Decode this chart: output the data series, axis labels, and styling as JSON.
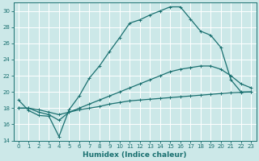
{
  "xlabel": "Humidex (Indice chaleur)",
  "bg_color": "#cce8e8",
  "line_color": "#1a7070",
  "grid_color": "#ffffff",
  "xlim": [
    -0.5,
    23.5
  ],
  "ylim": [
    14,
    31
  ],
  "xticks": [
    0,
    1,
    2,
    3,
    4,
    5,
    6,
    7,
    8,
    9,
    10,
    11,
    12,
    13,
    14,
    15,
    16,
    17,
    18,
    19,
    20,
    21,
    22,
    23
  ],
  "yticks": [
    14,
    16,
    18,
    20,
    22,
    24,
    26,
    28,
    30
  ],
  "line1_x": [
    0,
    1,
    2,
    3,
    4,
    5,
    6,
    7,
    8,
    9,
    10,
    11,
    12,
    13,
    14,
    15,
    16,
    17,
    18,
    19,
    20,
    21,
    22,
    23
  ],
  "line1_y": [
    19.0,
    17.7,
    17.1,
    17.0,
    14.5,
    17.8,
    19.5,
    21.7,
    23.2,
    25.0,
    26.7,
    28.5,
    28.9,
    29.5,
    30.0,
    30.5,
    30.5,
    29.0,
    27.5,
    27.0,
    25.5,
    21.5,
    20.0,
    20.0
  ],
  "line2_x": [
    0,
    1,
    2,
    3,
    4,
    5,
    6,
    7,
    8,
    9,
    10,
    11,
    12,
    13,
    14,
    15,
    16,
    17,
    18,
    19,
    20,
    21,
    22,
    23
  ],
  "line2_y": [
    18.0,
    18.0,
    17.5,
    17.2,
    16.5,
    17.5,
    18.0,
    18.5,
    19.0,
    19.5,
    20.0,
    20.5,
    21.0,
    21.5,
    22.0,
    22.5,
    22.8,
    23.0,
    23.2,
    23.2,
    22.8,
    22.0,
    21.0,
    20.5
  ],
  "line3_x": [
    0,
    1,
    2,
    3,
    4,
    5,
    6,
    7,
    8,
    9,
    10,
    11,
    12,
    13,
    14,
    15,
    16,
    17,
    18,
    19,
    20,
    21,
    22,
    23
  ],
  "line3_y": [
    18.0,
    18.0,
    17.8,
    17.5,
    17.2,
    17.5,
    17.8,
    18.0,
    18.2,
    18.5,
    18.7,
    18.9,
    19.0,
    19.1,
    19.2,
    19.3,
    19.4,
    19.5,
    19.6,
    19.7,
    19.8,
    19.9,
    19.95,
    20.0
  ],
  "tick_fontsize": 5.0,
  "xlabel_fontsize": 6.5,
  "linewidth": 0.9,
  "marker_size": 2.5
}
